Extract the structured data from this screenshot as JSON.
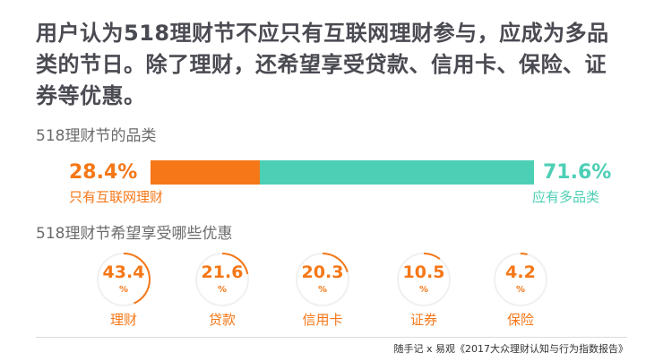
{
  "headline": "用户认为518理财节不应只有互联网理财参与，应成为多品类的节日。除了理财，还希望享受贷款、信用卡、保险、证券等优惠。",
  "colors": {
    "orange": "#f57717",
    "teal": "#4dcfb5",
    "ring_track": "#f0f0f0",
    "heading": "#4a4a52"
  },
  "chart_data": [
    {
      "type": "bar",
      "title": "518理财节的品类",
      "categories": [
        "只有互联网理财",
        "应有多品类"
      ],
      "values": [
        28.4,
        71.6
      ],
      "value_labels": [
        "28.4%",
        "71.6%"
      ],
      "stacked": true,
      "ylim": [
        0,
        100
      ]
    },
    {
      "type": "pie",
      "title": "518理财节希望享受哪些优惠",
      "categories": [
        "理财",
        "贷款",
        "信用卡",
        "证券",
        "保险"
      ],
      "values": [
        43.4,
        21.6,
        20.3,
        10.5,
        4.2
      ],
      "value_labels": [
        "43.4",
        "21.6",
        "20.3",
        "10.5",
        "4.2"
      ],
      "unit": "%",
      "ylim": [
        0,
        100
      ]
    }
  ],
  "source": "随手记 x 易观《2017大众理财认知与行为指数报告》"
}
